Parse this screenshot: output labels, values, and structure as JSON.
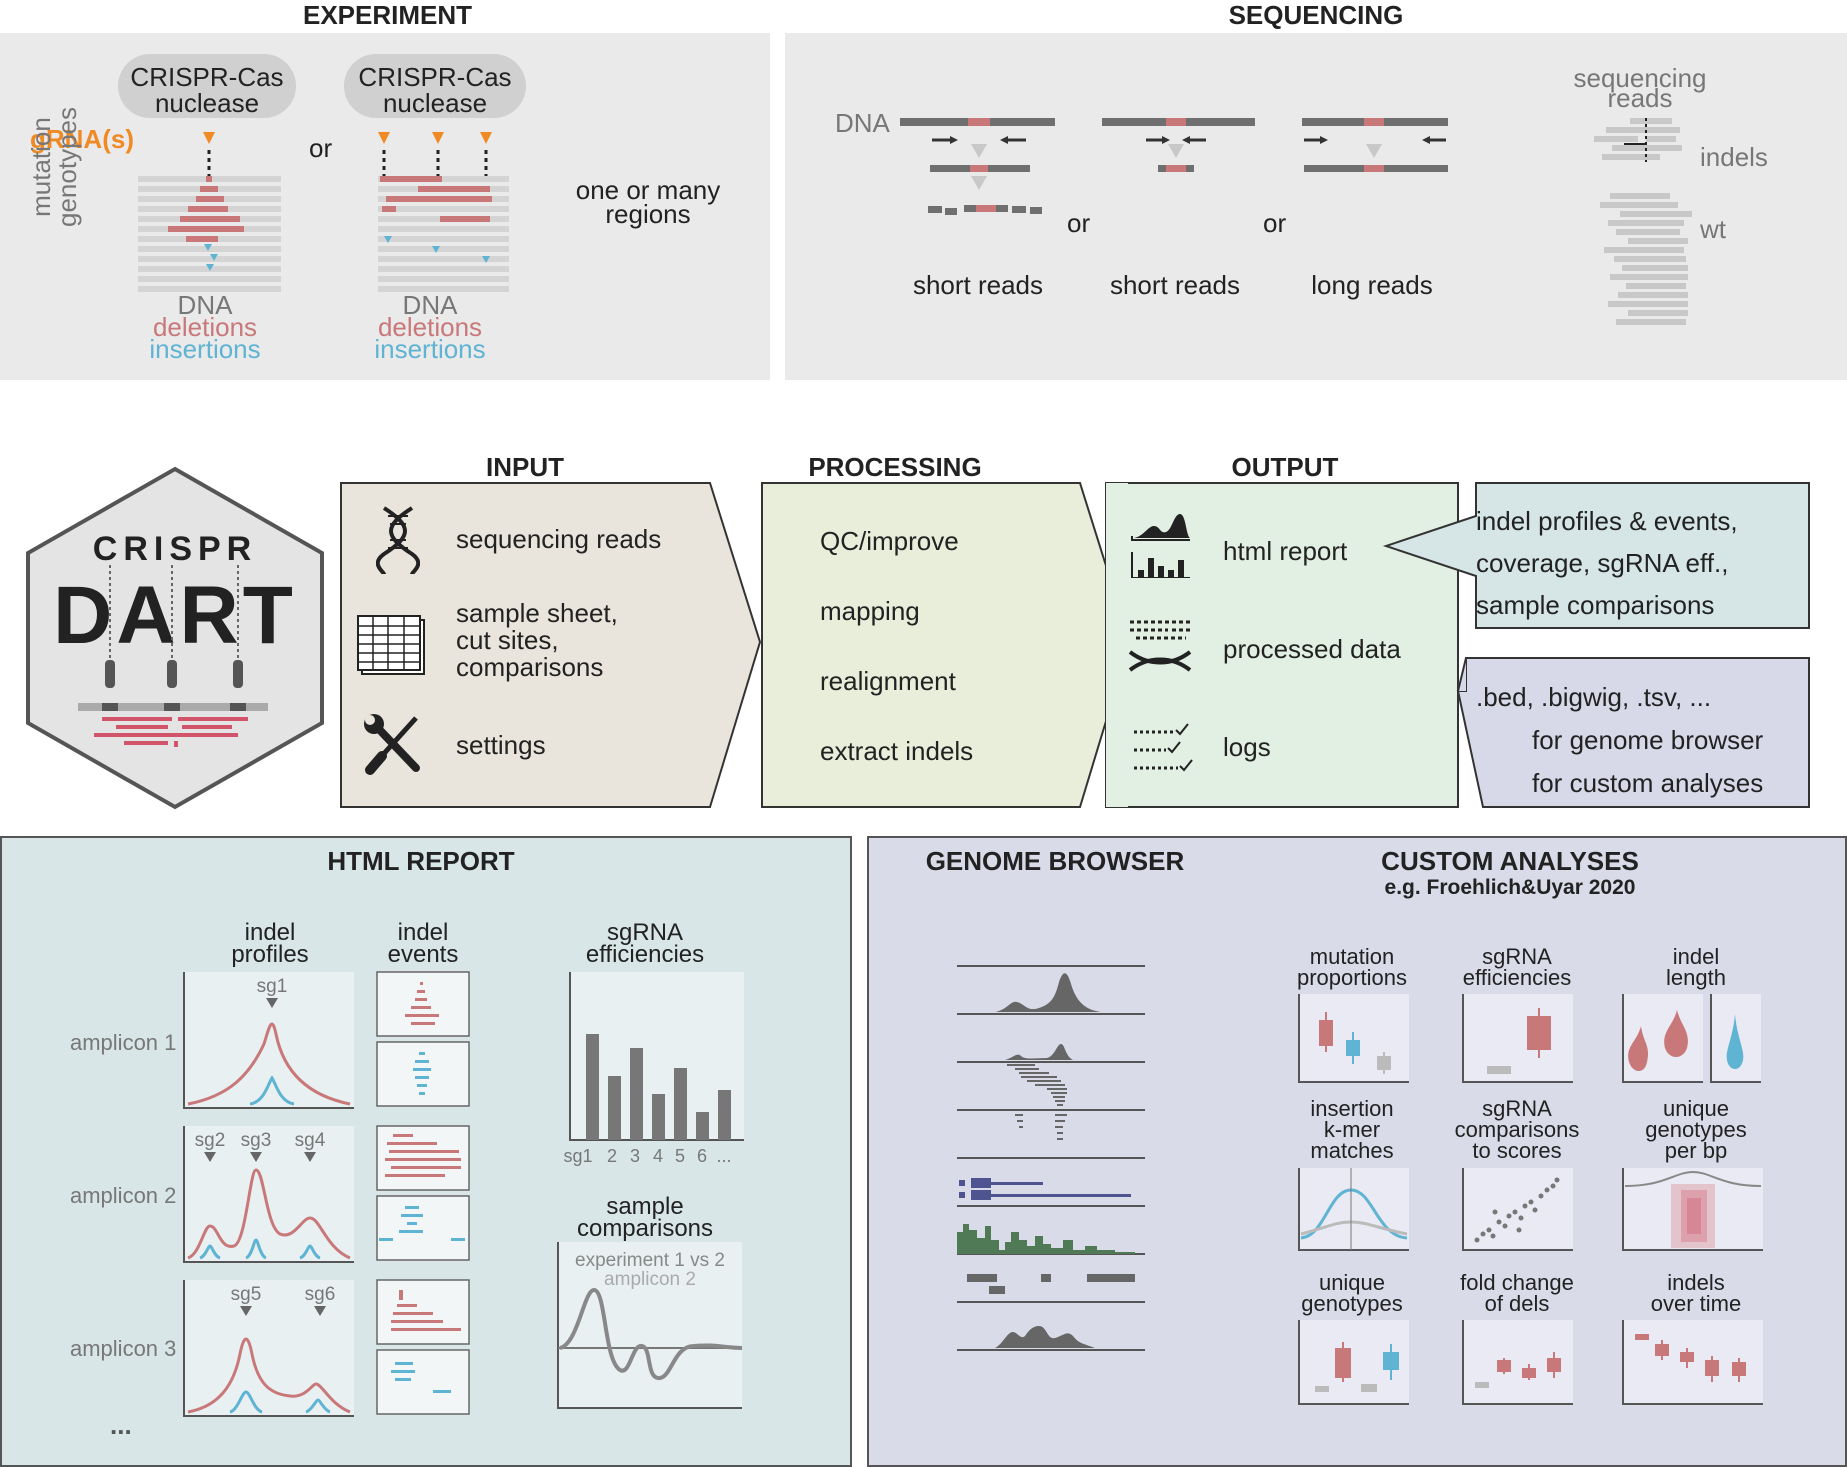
{
  "experiment": {
    "title": "EXPERIMENT",
    "nuclease_label_1": "CRISPR-Cas",
    "nuclease_label_2": "nuclease",
    "grna_label": "gRNA(s)",
    "or_label": "or",
    "axis_label_1": "mutation",
    "axis_label_2": "genotypes",
    "legend_dna": "DNA",
    "legend_deletions": "deletions",
    "legend_insertions": "insertions",
    "regions_label_1": "one or many",
    "regions_label_2": "regions"
  },
  "sequencing": {
    "title": "SEQUENCING",
    "dna_label": "DNA",
    "read_types": [
      "short reads",
      "short reads",
      "long reads"
    ],
    "or_label": "or",
    "reads_label_1": "sequencing",
    "reads_label_2": "reads",
    "indels_label": "indels",
    "wt_label": "wt"
  },
  "logo": {
    "top": "CRISPR",
    "bottom": "DART"
  },
  "pipeline": {
    "input": {
      "title": "INPUT",
      "items": [
        "sequencing reads",
        "sample sheet,",
        "cut sites,",
        "comparisons",
        "settings"
      ]
    },
    "processing": {
      "title": "PROCESSING",
      "items": [
        "QC/improve",
        "mapping",
        "realignment",
        "extract indels"
      ]
    },
    "output": {
      "title": "OUTPUT",
      "items": [
        "html report",
        "processed data",
        "logs"
      ]
    },
    "callout_report": [
      "indel profiles & events,",
      "coverage, sgRNA eff.,",
      "sample comparisons"
    ],
    "callout_data": [
      ".bed, .bigwig, .tsv, ...",
      "for genome browser",
      "for custom analyses"
    ]
  },
  "html_report": {
    "title": "HTML REPORT",
    "profiles_label_1": "indel",
    "profiles_label_2": "profiles",
    "events_label_1": "indel",
    "events_label_2": "events",
    "amplicons": [
      "amplicon 1",
      "amplicon 2",
      "amplicon 3"
    ],
    "sg_labels": [
      "sg1",
      "sg2",
      "sg3",
      "sg4",
      "sg5",
      "sg6"
    ],
    "ellipsis": "...",
    "efficiency_label_1": "sgRNA",
    "efficiency_label_2": "efficiencies",
    "efficiency_ticks": [
      "sg1",
      "2",
      "3",
      "4",
      "5",
      "6",
      "..."
    ],
    "comparison_label_1": "sample",
    "comparison_label_2": "comparisons",
    "comparison_sub_1": "experiment 1 vs 2",
    "comparison_sub_2": "amplicon 2"
  },
  "genome_browser": {
    "title": "GENOME BROWSER"
  },
  "custom_analyses": {
    "title": "CUSTOM ANALYSES",
    "subtitle": "e.g. Froehlich&Uyar 2020",
    "plots": [
      [
        "mutation",
        "proportions"
      ],
      [
        "sgRNA",
        "efficiencies"
      ],
      [
        "indel",
        "length"
      ],
      [
        "insertion",
        "k-mer",
        "matches"
      ],
      [
        "sgRNA",
        "comparisons",
        "to scores"
      ],
      [
        "unique",
        "genotypes",
        "per bp"
      ],
      [
        "unique",
        "genotypes"
      ],
      [
        "fold change",
        "of dels"
      ],
      [
        "indels",
        "over time"
      ]
    ]
  },
  "colors": {
    "deletion": "#c9787a",
    "insertion": "#5fb3d3",
    "grna": "#f08a24",
    "gray_bar": "#cfcfcf"
  }
}
